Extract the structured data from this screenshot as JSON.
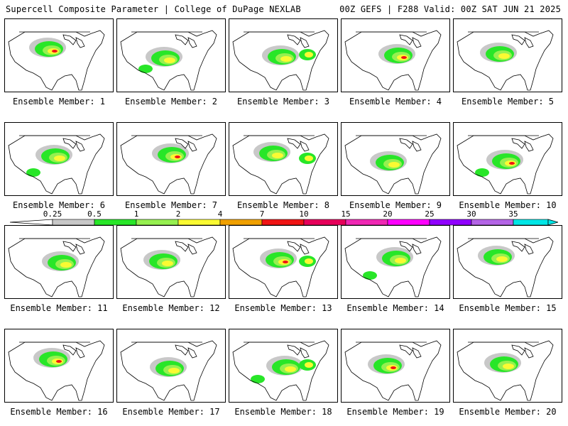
{
  "header": {
    "left": "Supercell Composite Parameter | College of DuPage NEXLAB",
    "right": "00Z GEFS | F288 Valid: 00Z SAT JUN 21 2025"
  },
  "members": [
    "Ensemble Member: 1",
    "Ensemble Member: 2",
    "Ensemble Member: 3",
    "Ensemble Member: 4",
    "Ensemble Member: 5",
    "Ensemble Member: 6",
    "Ensemble Member: 7",
    "Ensemble Member: 8",
    "Ensemble Member: 9",
    "Ensemble Member: 10",
    "Ensemble Member: 11",
    "Ensemble Member: 12",
    "Ensemble Member: 13",
    "Ensemble Member: 14",
    "Ensemble Member: 15",
    "Ensemble Member: 16",
    "Ensemble Member: 17",
    "Ensemble Member: 18",
    "Ensemble Member: 19",
    "Ensemble Member: 20"
  ],
  "colorbar": {
    "ticks": [
      "0.25",
      "0.5",
      "1",
      "2",
      "4",
      "7",
      "10",
      "15",
      "20",
      "25",
      "30",
      "35"
    ],
    "colors": [
      "#c8c8c8",
      "#28e628",
      "#96f050",
      "#fafa32",
      "#f0a000",
      "#f01414",
      "#e6005a",
      "#f028b4",
      "#ff00ff",
      "#9000ff",
      "#b464e6",
      "#00e6e6"
    ]
  },
  "panel_colors": {
    "land": "#ffffff",
    "border": "#000000",
    "low": "#c8c8c8",
    "green": "#28e628",
    "lightgreen": "#96f050",
    "yellow": "#fafa32",
    "orange": "#f0a000",
    "red": "#f01414",
    "magenta": "#f028b4"
  }
}
